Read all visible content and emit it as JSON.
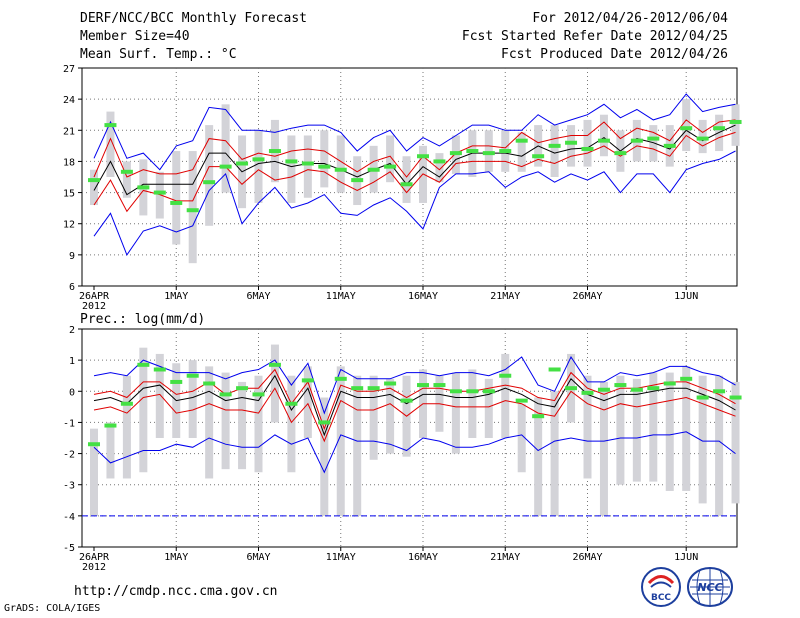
{
  "header": {
    "title": "DERF/NCC/BCC Monthly Forecast",
    "member_size": "Member Size=40",
    "variable": "Mean Surf. Temp.: °C",
    "period": "For 2012/04/26-2012/06/04",
    "start_date": "Fcst Started Refer Date 2012/04/25",
    "produced_date": "Fcst Produced Date 2012/04/26"
  },
  "footer": {
    "url": "http://cmdp.ncc.cma.gov.cn",
    "credit": "GrADS: COLA/IGES"
  },
  "logos": {
    "bcc": "BCC",
    "ncc": "NCC"
  },
  "colors": {
    "bar": "#d3d3d8",
    "member": "#44e044",
    "mean": "#000000",
    "band": "#e00000",
    "extreme": "#0000ee",
    "grid": "#777777"
  },
  "chart_data": [
    {
      "type": "line",
      "name": "temperature",
      "title": "Mean Surf. Temp.: °C",
      "ylim": [
        6,
        27
      ],
      "yticks": [
        "6",
        "9",
        "12",
        "15",
        "18",
        "21",
        "24",
        "27"
      ],
      "xticks": [
        {
          "day": 0,
          "label": "26APR"
        },
        {
          "day": 5,
          "label": "1MAY"
        },
        {
          "day": 10,
          "label": "6MAY"
        },
        {
          "day": 15,
          "label": "11MAY"
        },
        {
          "day": 20,
          "label": "16MAY"
        },
        {
          "day": 25,
          "label": "21MAY"
        },
        {
          "day": 30,
          "label": "26MAY"
        },
        {
          "day": 36,
          "label": "1JUN"
        }
      ],
      "year_label": "2012",
      "x": [
        0,
        1,
        2,
        3,
        4,
        5,
        6,
        7,
        8,
        9,
        10,
        11,
        12,
        13,
        14,
        15,
        16,
        17,
        18,
        19,
        20,
        21,
        22,
        23,
        24,
        25,
        26,
        27,
        28,
        29,
        30,
        31,
        32,
        33,
        34,
        35,
        36,
        37,
        38,
        39
      ],
      "series": [
        {
          "name": "max",
          "values": [
            18.3,
            21.8,
            18.3,
            18.8,
            17.2,
            19.5,
            20.0,
            23.2,
            23.0,
            21.0,
            21.0,
            20.8,
            21.2,
            21.5,
            21.5,
            20.8,
            19.0,
            20.3,
            21.0,
            19.0,
            20.3,
            19.5,
            20.5,
            21.5,
            21.5,
            21.0,
            21.0,
            22.5,
            21.5,
            22.0,
            22.5,
            23.5,
            22.2,
            23.0,
            22.0,
            22.5,
            24.5,
            22.8,
            23.2,
            23.5
          ]
        },
        {
          "name": "upper",
          "values": [
            16.5,
            20.2,
            16.5,
            17.2,
            16.8,
            16.8,
            17.2,
            20.2,
            20.0,
            18.2,
            18.8,
            18.5,
            19.0,
            19.2,
            19.0,
            18.0,
            17.0,
            18.0,
            18.5,
            16.5,
            18.5,
            17.2,
            18.8,
            19.5,
            19.5,
            19.3,
            20.8,
            19.8,
            20.2,
            20.5,
            20.5,
            21.8,
            20.2,
            21.2,
            20.8,
            20.0,
            22.0,
            20.8,
            21.8,
            22.0
          ]
        },
        {
          "name": "mean",
          "values": [
            15.2,
            18.0,
            14.8,
            15.8,
            15.8,
            15.8,
            15.8,
            18.8,
            18.8,
            17.0,
            17.8,
            18.0,
            17.5,
            17.8,
            17.8,
            17.2,
            16.5,
            17.2,
            17.8,
            15.8,
            17.5,
            16.5,
            18.2,
            18.8,
            18.8,
            18.8,
            18.5,
            19.5,
            18.8,
            19.2,
            19.3,
            20.3,
            19.0,
            20.2,
            19.8,
            19.2,
            21.0,
            20.0,
            20.8,
            21.5
          ]
        },
        {
          "name": "lower",
          "values": [
            13.8,
            16.2,
            13.2,
            15.2,
            14.8,
            14.2,
            14.2,
            17.5,
            17.5,
            15.8,
            17.2,
            16.2,
            16.5,
            17.2,
            17.0,
            16.0,
            15.2,
            16.0,
            17.0,
            15.0,
            16.8,
            16.0,
            17.8,
            18.0,
            18.0,
            18.0,
            17.5,
            18.2,
            17.8,
            18.5,
            18.8,
            19.5,
            18.5,
            19.5,
            19.2,
            18.5,
            20.5,
            19.5,
            20.3,
            20.8
          ]
        },
        {
          "name": "min",
          "values": [
            10.8,
            13.0,
            9.0,
            11.3,
            11.8,
            11.2,
            11.8,
            15.2,
            16.8,
            12.0,
            14.0,
            15.5,
            13.5,
            14.0,
            14.8,
            13.0,
            12.8,
            13.8,
            14.5,
            13.2,
            11.5,
            15.5,
            16.8,
            16.8,
            17.0,
            15.5,
            16.5,
            17.0,
            16.0,
            16.8,
            16.2,
            17.0,
            15.0,
            16.8,
            16.8,
            15.0,
            17.2,
            17.8,
            18.2,
            19.0
          ]
        }
      ],
      "bars_low": [
        13.8,
        16.5,
        14.5,
        12.8,
        12.5,
        10.0,
        8.2,
        11.8,
        15.0,
        13.5,
        14.0,
        16.0,
        14.0,
        14.5,
        15.5,
        15.0,
        13.8,
        15.0,
        16.0,
        14.0,
        14.0,
        16.0,
        16.8,
        16.5,
        17.0,
        17.0,
        17.0,
        17.5,
        16.5,
        17.5,
        17.5,
        18.5,
        17.0,
        18.0,
        18.0,
        17.5,
        19.0,
        18.8,
        19.0,
        19.5
      ],
      "bars_high": [
        17.2,
        22.8,
        18.0,
        18.2,
        17.0,
        19.0,
        19.0,
        21.5,
        23.5,
        20.5,
        21.0,
        22.0,
        20.5,
        20.5,
        21.0,
        20.5,
        18.5,
        19.5,
        20.5,
        18.5,
        19.5,
        18.8,
        20.5,
        21.0,
        21.0,
        21.0,
        20.8,
        21.5,
        21.5,
        21.5,
        22.0,
        22.5,
        21.0,
        22.0,
        21.5,
        21.5,
        24.0,
        22.0,
        22.5,
        23.5
      ],
      "members": [
        16.2,
        21.5,
        17.0,
        15.5,
        15.0,
        14.0,
        13.3,
        16.0,
        17.5,
        17.8,
        18.2,
        19.0,
        18.0,
        17.8,
        17.5,
        17.2,
        16.2,
        17.2,
        17.5,
        15.8,
        18.5,
        18.0,
        18.8,
        19.0,
        18.8,
        19.0,
        20.0,
        18.5,
        19.5,
        19.8,
        19.2,
        20.0,
        18.8,
        20.0,
        20.2,
        19.5,
        21.2,
        20.2,
        21.2,
        21.8
      ]
    },
    {
      "type": "line",
      "name": "precipitation",
      "title": "Prec.: log(mm/d)",
      "ylim": [
        -5,
        2
      ],
      "yticks": [
        "-5",
        "-4",
        "-3",
        "-2",
        "-1",
        "0",
        "1",
        "2"
      ],
      "xticks": [
        {
          "day": 0,
          "label": "26APR"
        },
        {
          "day": 5,
          "label": "1MAY"
        },
        {
          "day": 10,
          "label": "6MAY"
        },
        {
          "day": 15,
          "label": "11MAY"
        },
        {
          "day": 20,
          "label": "16MAY"
        },
        {
          "day": 25,
          "label": "21MAY"
        },
        {
          "day": 30,
          "label": "26MAY"
        },
        {
          "day": 36,
          "label": "1JUN"
        }
      ],
      "year_label": "2012",
      "x": [
        0,
        1,
        2,
        3,
        4,
        5,
        6,
        7,
        8,
        9,
        10,
        11,
        12,
        13,
        14,
        15,
        16,
        17,
        18,
        19,
        20,
        21,
        22,
        23,
        24,
        25,
        26,
        27,
        28,
        29,
        30,
        31,
        32,
        33,
        34,
        35,
        36,
        37,
        38,
        39
      ],
      "series": [
        {
          "name": "max",
          "values": [
            0.5,
            0.6,
            0.5,
            1.0,
            0.8,
            0.6,
            0.6,
            0.6,
            0.4,
            0.6,
            0.7,
            1.0,
            0.2,
            0.9,
            -0.7,
            0.7,
            0.4,
            0.4,
            0.4,
            0.6,
            0.6,
            0.5,
            0.6,
            0.6,
            0.5,
            0.7,
            1.1,
            0.2,
            0.0,
            1.1,
            0.3,
            0.3,
            0.6,
            0.5,
            0.6,
            0.8,
            0.8,
            0.6,
            0.5,
            0.2
          ]
        },
        {
          "name": "mean",
          "values": [
            -0.3,
            -0.2,
            -0.4,
            0.1,
            0.2,
            -0.3,
            -0.2,
            0.0,
            -0.3,
            -0.2,
            -0.3,
            0.5,
            -0.6,
            0.1,
            -1.4,
            0.0,
            -0.2,
            -0.2,
            -0.1,
            -0.4,
            -0.1,
            -0.1,
            -0.2,
            -0.2,
            -0.1,
            0.1,
            -0.1,
            -0.4,
            -0.5,
            0.4,
            -0.1,
            -0.3,
            -0.1,
            -0.1,
            0.0,
            0.1,
            0.1,
            -0.1,
            -0.3,
            -0.6
          ]
        },
        {
          "name": "upper",
          "values": [
            -0.1,
            0.0,
            -0.2,
            0.3,
            0.3,
            -0.1,
            0.0,
            0.3,
            -0.1,
            0.1,
            0.1,
            0.7,
            -0.4,
            0.3,
            -1.2,
            0.2,
            0.0,
            0.0,
            0.1,
            -0.2,
            0.1,
            0.1,
            0.0,
            0.0,
            0.1,
            0.2,
            0.1,
            -0.2,
            -0.3,
            0.6,
            0.1,
            -0.1,
            0.1,
            0.1,
            0.2,
            0.3,
            0.3,
            0.1,
            -0.1,
            -0.4
          ]
        },
        {
          "name": "lower",
          "values": [
            -0.6,
            -0.5,
            -0.7,
            -0.2,
            -0.1,
            -0.7,
            -0.6,
            -0.4,
            -0.6,
            -0.6,
            -0.7,
            0.1,
            -1.0,
            -0.4,
            -1.6,
            -0.3,
            -0.6,
            -0.6,
            -0.4,
            -0.8,
            -0.4,
            -0.4,
            -0.5,
            -0.5,
            -0.5,
            -0.3,
            -0.4,
            -0.7,
            -0.8,
            0.0,
            -0.4,
            -0.6,
            -0.4,
            -0.5,
            -0.4,
            -0.3,
            -0.2,
            -0.4,
            -0.6,
            -0.8
          ]
        },
        {
          "name": "min",
          "values": [
            -1.8,
            -2.3,
            -2.1,
            -1.9,
            -1.9,
            -1.7,
            -1.8,
            -1.5,
            -1.7,
            -1.8,
            -1.8,
            -1.4,
            -1.7,
            -1.5,
            -2.6,
            -1.4,
            -1.6,
            -1.6,
            -1.7,
            -1.9,
            -1.5,
            -1.6,
            -1.8,
            -1.8,
            -1.7,
            -1.5,
            -1.4,
            -1.9,
            -1.6,
            -1.5,
            -1.6,
            -1.6,
            -1.5,
            -1.5,
            -1.4,
            -1.4,
            -1.3,
            -1.6,
            -1.6,
            -2.0
          ]
        }
      ],
      "bars_low": [
        -4.0,
        -2.8,
        -2.8,
        -2.6,
        -1.5,
        -1.5,
        -1.5,
        -2.8,
        -2.5,
        -2.5,
        -2.6,
        -1.0,
        -2.6,
        -1.5,
        -4.0,
        -4.0,
        -4.0,
        -2.2,
        -2.0,
        -2.1,
        -1.5,
        -1.3,
        -2.0,
        -1.5,
        -1.5,
        -1.5,
        -2.6,
        -4.0,
        -4.0,
        -1.0,
        -2.8,
        -4.0,
        -3.0,
        -2.9,
        -2.9,
        -3.2,
        -3.2,
        -3.6,
        -4.0,
        -3.6
      ],
      "bars_high": [
        -1.2,
        -1.0,
        0.5,
        1.4,
        1.2,
        0.9,
        1.0,
        0.8,
        0.6,
        0.3,
        0.5,
        1.5,
        0.5,
        0.8,
        -0.2,
        0.8,
        0.5,
        0.5,
        0.4,
        0.5,
        0.7,
        0.5,
        0.6,
        0.7,
        0.4,
        1.2,
        -0.4,
        -0.2,
        0.0,
        1.2,
        0.5,
        0.3,
        0.5,
        0.4,
        0.6,
        0.6,
        0.8,
        0.5,
        0.5,
        0.3
      ],
      "members": [
        -1.7,
        -1.1,
        -0.4,
        0.85,
        0.7,
        0.3,
        0.5,
        0.25,
        -0.1,
        0.1,
        -0.1,
        0.85,
        -0.4,
        0.35,
        -1.0,
        0.4,
        0.1,
        0.1,
        0.25,
        -0.3,
        0.2,
        0.2,
        0.0,
        0.0,
        0.0,
        0.5,
        -0.3,
        -0.8,
        0.7,
        0.1,
        -0.05,
        0.05,
        0.2,
        0.05,
        0.1,
        0.25,
        0.4,
        -0.2,
        0.0,
        -0.2
      ],
      "floor_line": -4.0
    }
  ]
}
